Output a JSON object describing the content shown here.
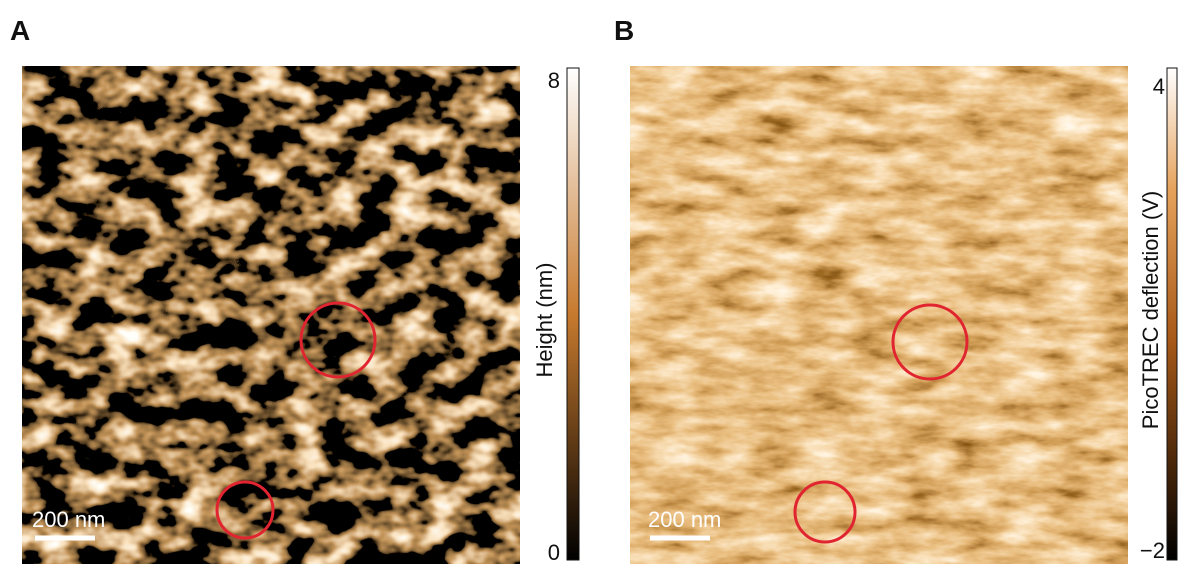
{
  "panels": [
    {
      "label": "A",
      "scale_bar": "200 nm",
      "colorbar": {
        "title": "Height (nm)",
        "ticks": [
          "8",
          "0"
        ]
      }
    },
    {
      "label": "B",
      "scale_bar": "200 nm",
      "colorbar": {
        "title": "PicoTREC deflection (V)",
        "ticks": [
          "4",
          "−2"
        ]
      }
    }
  ]
}
